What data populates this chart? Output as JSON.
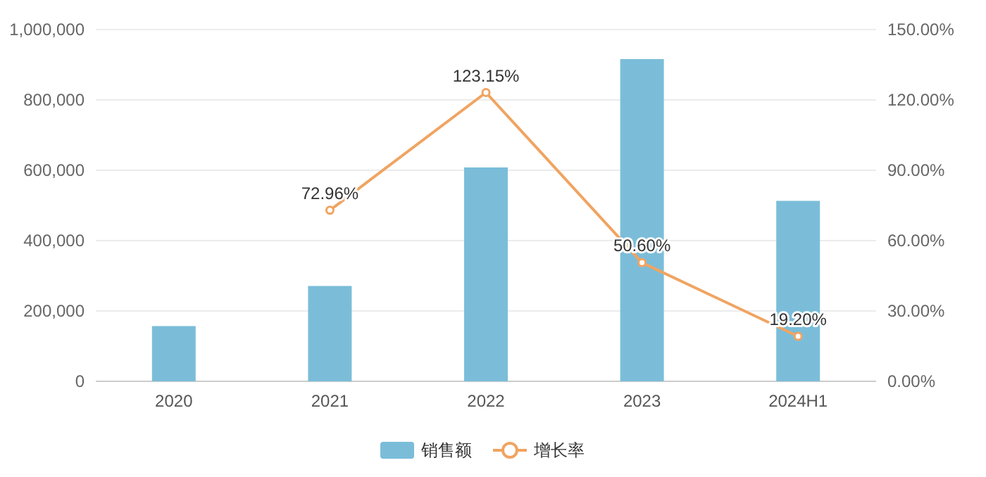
{
  "chart_data": {
    "type": "bar",
    "categories": [
      "2020",
      "2021",
      "2022",
      "2023",
      "2024H1"
    ],
    "series": [
      {
        "name": "销售额",
        "color": "#7bbdd9",
        "values": [
          157000,
          271000,
          608000,
          916000,
          513000
        ]
      },
      {
        "name": "增长率",
        "type": "line",
        "axis": "y2",
        "color": "#f0a461",
        "marker": "circle",
        "values": [
          null,
          72.96,
          123.15,
          50.6,
          19.2
        ],
        "value_labels": [
          null,
          "72.96%",
          "123.15%",
          "50.60%",
          "19.20%"
        ]
      }
    ],
    "ylim": [
      0,
      1000000
    ],
    "yticks": [
      {
        "value": 0,
        "label": "0"
      },
      {
        "value": 200000,
        "label": "200,000"
      },
      {
        "value": 400000,
        "label": "400,000"
      },
      {
        "value": 600000,
        "label": "600,000"
      },
      {
        "value": 800000,
        "label": "800,000"
      },
      {
        "value": 1000000,
        "label": "1,000,000"
      }
    ],
    "y2lim": [
      0,
      150
    ],
    "y2ticks": [
      {
        "value": 0,
        "label": "0.00%"
      },
      {
        "value": 30,
        "label": "30.00%"
      },
      {
        "value": 60,
        "label": "60.00%"
      },
      {
        "value": 90,
        "label": "90.00%"
      },
      {
        "value": 120,
        "label": "120.00%"
      },
      {
        "value": 150,
        "label": "150.00%"
      }
    ],
    "grid": "y",
    "legend": "bottom"
  }
}
